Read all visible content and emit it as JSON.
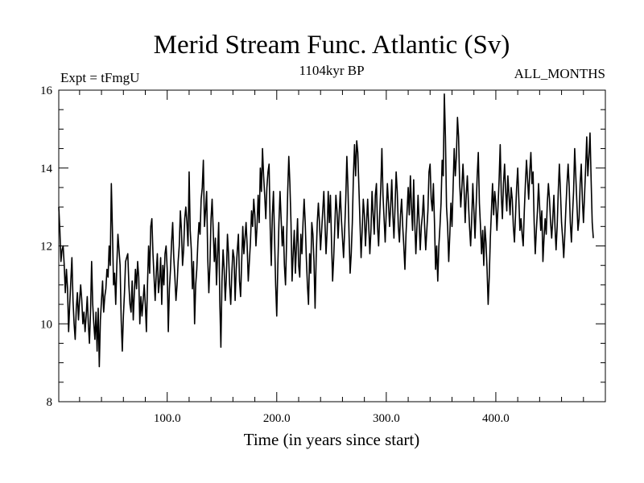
{
  "chart_data": {
    "type": "line",
    "title": "Merid Stream Func. Atlantic (Sv)",
    "subtitle_left": "Expt = tFmgU",
    "subtitle_center": "1104kyr BP",
    "subtitle_right": "ALL_MONTHS",
    "xlabel": "Time (in years since start)",
    "ylabel": "",
    "xlim": [
      1,
      500
    ],
    "ylim": [
      8,
      16
    ],
    "x_ticks": [
      100,
      200,
      300,
      400
    ],
    "x_tick_labels": [
      "100.0",
      "200.0",
      "300.0",
      "400.0"
    ],
    "y_ticks": [
      8,
      10,
      12,
      14,
      16
    ],
    "y_tick_labels": [
      "8",
      "10",
      "12",
      "14",
      "16"
    ],
    "series": [
      {
        "name": "Merid Stream Func. Atlantic",
        "color": "#000000",
        "x_start": 1,
        "x_step": 1,
        "values": [
          13.0,
          12.4,
          11.6,
          11.9,
          12.0,
          11.5,
          10.8,
          11.4,
          10.9,
          9.8,
          10.5,
          11.1,
          11.7,
          10.6,
          10.0,
          9.6,
          10.4,
          10.8,
          10.1,
          10.6,
          11.0,
          10.6,
          10.0,
          10.3,
          9.8,
          10.2,
          10.7,
          10.0,
          9.5,
          10.3,
          11.6,
          10.5,
          10.0,
          9.6,
          10.3,
          9.3,
          10.4,
          8.9,
          10.1,
          10.6,
          11.1,
          10.3,
          10.7,
          10.9,
          11.4,
          11.2,
          12.0,
          11.5,
          13.6,
          12.4,
          11.0,
          11.3,
          10.5,
          11.5,
          12.3,
          11.9,
          11.5,
          10.1,
          9.3,
          10.2,
          10.8,
          11.6,
          11.7,
          11.8,
          11.0,
          10.5,
          10.3,
          11.1,
          10.1,
          10.8,
          11.4,
          10.9,
          11.6,
          11.2,
          10.0,
          10.7,
          10.2,
          10.6,
          11.0,
          10.5,
          9.8,
          11.0,
          12.0,
          11.3,
          12.5,
          12.7,
          11.8,
          11.2,
          10.6,
          11.3,
          11.8,
          10.8,
          11.1,
          11.7,
          10.5,
          11.5,
          11.0,
          11.8,
          12.0,
          11.4,
          9.8,
          10.9,
          11.4,
          12.1,
          12.6,
          11.7,
          11.2,
          10.6,
          11.0,
          11.6,
          12.0,
          12.9,
          12.4,
          11.5,
          11.9,
          12.7,
          13.0,
          12.6,
          12.0,
          13.9,
          12.4,
          11.9,
          10.9,
          11.6,
          10.0,
          11.0,
          11.4,
          12.1,
          12.6,
          12.3,
          13.2,
          13.5,
          14.2,
          12.5,
          12.9,
          13.4,
          11.7,
          10.8,
          11.5,
          12.7,
          13.2,
          12.4,
          11.6,
          12.2,
          11.0,
          11.8,
          12.6,
          10.6,
          9.4,
          11.1,
          11.9,
          11.4,
          10.6,
          11.2,
          12.3,
          11.8,
          11.0,
          10.5,
          11.3,
          11.9,
          11.7,
          10.6,
          11.4,
          11.9,
          12.3,
          11.1,
          10.7,
          11.6,
          12.5,
          11.8,
          12.2,
          12.6,
          12.0,
          11.1,
          11.6,
          12.1,
          12.9,
          12.5,
          13.2,
          12.8,
          12.0,
          12.5,
          13.3,
          12.6,
          14.0,
          13.4,
          14.5,
          13.8,
          13.3,
          12.7,
          13.5,
          13.9,
          14.1,
          12.5,
          11.5,
          12.8,
          13.4,
          12.2,
          11.0,
          10.2,
          11.5,
          12.6,
          13.4,
          12.7,
          12.0,
          12.5,
          11.5,
          11.0,
          12.1,
          13.4,
          14.3,
          13.6,
          12.6,
          11.1,
          11.8,
          12.4,
          11.3,
          12.0,
          12.7,
          11.5,
          11.2,
          12.3,
          11.8,
          12.6,
          13.2,
          12.6,
          11.7,
          11.0,
          10.5,
          11.8,
          11.3,
          12.6,
          12.3,
          11.6,
          10.4,
          11.7,
          12.6,
          13.1,
          12.6,
          11.9,
          12.4,
          12.9,
          13.4,
          12.6,
          11.8,
          12.4,
          13.4,
          12.6,
          13.3,
          12.1,
          11.1,
          11.7,
          12.5,
          13.3,
          12.9,
          12.2,
          12.8,
          13.4,
          12.7,
          12.2,
          11.7,
          12.4,
          13.2,
          14.3,
          13.5,
          12.3,
          11.3,
          11.8,
          12.6,
          13.8,
          14.6,
          13.8,
          14.7,
          14.4,
          13.5,
          12.6,
          11.7,
          12.4,
          13.2,
          12.8,
          12.0,
          12.6,
          13.2,
          12.5,
          11.8,
          12.4,
          13.4,
          12.8,
          12.3,
          13.3,
          13.6,
          12.5,
          12.0,
          12.8,
          13.5,
          14.5,
          13.3,
          12.7,
          12.1,
          12.9,
          13.6,
          13.1,
          12.5,
          13.0,
          13.7,
          12.8,
          12.2,
          13.0,
          13.9,
          13.4,
          12.5,
          12.1,
          12.8,
          13.2,
          12.5,
          12.0,
          11.4,
          12.3,
          12.9,
          13.5,
          12.8,
          13.8,
          13.0,
          12.4,
          13.7,
          12.6,
          11.8,
          12.5,
          13.3,
          12.6,
          11.9,
          12.5,
          12.8,
          13.3,
          12.5,
          11.9,
          12.4,
          12.9,
          13.9,
          14.1,
          13.2,
          12.9,
          13.6,
          12.6,
          11.4,
          12.0,
          11.1,
          12.0,
          12.5,
          13.1,
          14.2,
          13.8,
          15.9,
          14.8,
          13.0,
          12.5,
          11.6,
          12.3,
          13.1,
          12.5,
          13.5,
          14.5,
          13.8,
          14.3,
          15.3,
          14.8,
          13.6,
          13.0,
          13.5,
          14.1,
          13.5,
          12.6,
          13.3,
          13.8,
          13.1,
          12.5,
          12.0,
          12.7,
          13.6,
          12.9,
          12.2,
          13.0,
          13.8,
          14.4,
          13.1,
          12.5,
          11.8,
          12.4,
          11.5,
          12.5,
          12.1,
          11.4,
          10.5,
          11.2,
          12.2,
          12.9,
          13.6,
          12.8,
          13.4,
          13.1,
          12.4,
          13.0,
          13.7,
          14.6,
          13.3,
          12.7,
          13.6,
          14.1,
          13.4,
          12.9,
          13.8,
          13.3,
          12.8,
          13.5,
          13.2,
          12.5,
          12.1,
          12.8,
          13.5,
          14.0,
          13.2,
          12.4,
          12.7,
          12.3,
          12.0,
          12.9,
          13.6,
          14.2,
          13.7,
          13.2,
          13.9,
          14.4,
          13.6,
          13.9,
          12.6,
          11.8,
          12.4,
          12.9,
          13.6,
          13.0,
          12.4,
          12.9,
          11.6,
          12.2,
          12.7,
          12.3,
          13.1,
          13.6,
          13.2,
          12.6,
          12.2,
          12.7,
          13.3,
          12.5,
          11.9,
          12.5,
          13.4,
          14.1,
          13.4,
          12.6,
          12.2,
          11.7,
          12.3,
          13.0,
          13.6,
          14.1,
          13.5,
          12.6,
          12.1,
          12.8,
          13.4,
          14.5,
          13.8,
          13.1,
          12.4,
          12.7,
          13.6,
          14.1,
          13.2,
          12.6,
          13.3,
          14.0,
          14.8,
          13.8,
          14.3,
          14.9,
          13.7,
          12.6,
          12.2
        ]
      }
    ]
  }
}
